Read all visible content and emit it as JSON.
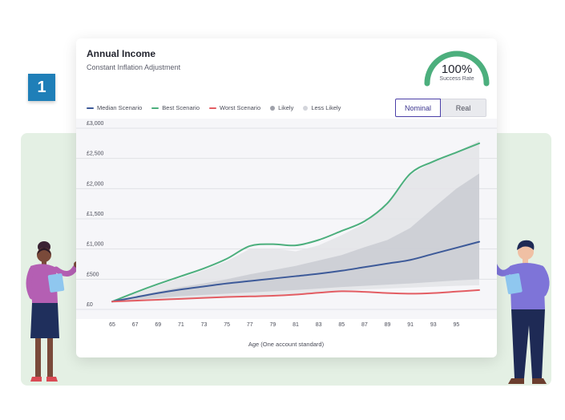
{
  "step_number": "1",
  "card": {
    "title": "Annual Income",
    "subtitle": "Constant Inflation Adjustment"
  },
  "gauge": {
    "value": "100%",
    "label": "Success Rate",
    "fraction": 1.0,
    "color": "#4caf7d"
  },
  "toggle": {
    "options": [
      "Nominal",
      "Real"
    ],
    "selected": "Nominal"
  },
  "chart_data": {
    "type": "line",
    "title": "",
    "xlabel": "Age (One account standard)",
    "ylabel": "",
    "ylim": [
      0,
      3000
    ],
    "y_ticks": [
      "£3,000",
      "£2,500",
      "£2,000",
      "£1,500",
      "£1,000",
      "£500",
      "£0"
    ],
    "x_ticks": [
      "65",
      "67",
      "69",
      "71",
      "73",
      "75",
      "77",
      "79",
      "81",
      "83",
      "85",
      "87",
      "89",
      "91",
      "93",
      "95"
    ],
    "xlim": [
      65,
      97
    ],
    "grid": true,
    "legend_position": "top-left",
    "legend": [
      {
        "label": "Median Scenario",
        "kind": "line",
        "color": "#3d5a99"
      },
      {
        "label": "Best Scenario",
        "kind": "line",
        "color": "#4caf7d"
      },
      {
        "label": "Worst Scenario",
        "kind": "line",
        "color": "#e35d63"
      },
      {
        "label": "Likely",
        "kind": "dot",
        "color": "#9fa1aa"
      },
      {
        "label": "Less Likely",
        "kind": "dot",
        "color": "#d3d5db"
      }
    ],
    "x": [
      65,
      67,
      69,
      71,
      73,
      75,
      77,
      79,
      81,
      83,
      85,
      87,
      89,
      91,
      93,
      95,
      97
    ],
    "series": [
      {
        "name": "Best Scenario",
        "color": "#4caf7d",
        "values": [
          130,
          280,
          420,
          550,
          680,
          840,
          1050,
          1080,
          1060,
          1150,
          1300,
          1460,
          1760,
          2250,
          2450,
          2600,
          2750
        ]
      },
      {
        "name": "Median Scenario",
        "color": "#3d5a99",
        "values": [
          130,
          200,
          270,
          330,
          380,
          430,
          470,
          510,
          550,
          590,
          640,
          700,
          760,
          820,
          920,
          1020,
          1120
        ]
      },
      {
        "name": "Worst Scenario",
        "color": "#e35d63",
        "values": [
          130,
          145,
          160,
          175,
          190,
          205,
          215,
          225,
          245,
          275,
          300,
          290,
          270,
          260,
          270,
          295,
          320
        ]
      }
    ],
    "bands": [
      {
        "name": "Less Likely",
        "color": "#e3e4e8",
        "upper": [
          130,
          260,
          400,
          520,
          650,
          800,
          1000,
          1010,
          960,
          1060,
          1230,
          1420,
          1750,
          2230,
          2450,
          2600,
          2800
        ],
        "lower": [
          130,
          150,
          165,
          180,
          195,
          210,
          220,
          235,
          255,
          285,
          310,
          330,
          345,
          360,
          375,
          390,
          400
        ]
      },
      {
        "name": "Likely",
        "color": "#c9cbd2",
        "upper": [
          130,
          215,
          295,
          370,
          430,
          500,
          580,
          650,
          720,
          810,
          900,
          1030,
          1150,
          1350,
          1680,
          2000,
          2250
        ],
        "lower": [
          130,
          160,
          190,
          220,
          240,
          260,
          280,
          300,
          320,
          345,
          370,
          390,
          410,
          430,
          455,
          480,
          500
        ]
      }
    ]
  }
}
